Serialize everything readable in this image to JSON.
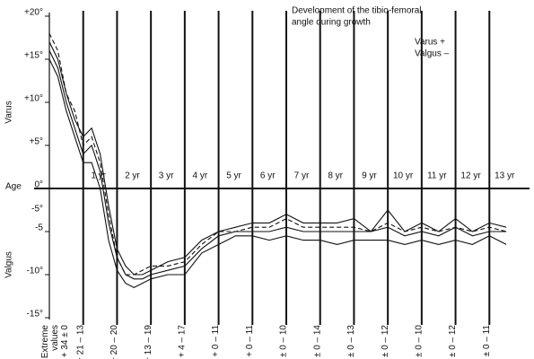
{
  "chart_data": {
    "type": "line",
    "title_lines": [
      "Development of the tibio-femoral",
      "angle during growth"
    ],
    "legend_lines": [
      "Varus +",
      "Valgus –"
    ],
    "y_upper_label": "Varus",
    "y_lower_label": "Valgus",
    "x_label": "Age",
    "extra_tick_label": "-5°",
    "ylim": [
      -15,
      20
    ],
    "yticks": [
      {
        "value": 20,
        "label": "+20°"
      },
      {
        "value": 15,
        "label": "+15°"
      },
      {
        "value": 10,
        "label": "+10°"
      },
      {
        "value": 5,
        "label": "+5°"
      },
      {
        "value": 0,
        "label": "0°"
      },
      {
        "value": -5,
        "label": "-5"
      },
      {
        "value": -10,
        "label": "-10°"
      },
      {
        "value": -15,
        "label": "-15°"
      }
    ],
    "xlim": [
      0,
      14
    ],
    "xticks": [
      {
        "value": 0,
        "label": "Extreme values + 34 ± 0"
      },
      {
        "value": 1,
        "label": "+ 21 – 13"
      },
      {
        "value": 2,
        "label": "+ 20 – 20"
      },
      {
        "value": 3,
        "label": "+ 13 – 19"
      },
      {
        "value": 4,
        "label": "+ 4 – 17"
      },
      {
        "value": 5,
        "label": "+ 0 – 11"
      },
      {
        "value": 6,
        "label": "+ 0 – 11"
      },
      {
        "value": 7,
        "label": "± 0 – 10"
      },
      {
        "value": 8,
        "label": "± 0 – 14"
      },
      {
        "value": 9,
        "label": "± 0 – 13"
      },
      {
        "value": 10,
        "label": "± 0 – 12"
      },
      {
        "value": 11,
        "label": "± 0 – 10"
      },
      {
        "value": 12,
        "label": "± 0 – 12"
      },
      {
        "value": 13,
        "label": "± 0 – 11"
      }
    ],
    "age_labels": [
      "1 yr",
      "2 yr",
      "3 yr",
      "4 yr",
      "5 yr",
      "6 yr",
      "7 yr",
      "8 yr",
      "9 yr",
      "10 yr",
      "11 yr",
      "12 yr",
      "13 yr"
    ],
    "x": [
      0,
      0.25,
      0.5,
      0.75,
      1,
      1.25,
      1.5,
      1.75,
      2,
      2.25,
      2.5,
      2.75,
      3,
      3.5,
      4,
      4.5,
      5,
      5.5,
      6,
      6.5,
      7,
      7.5,
      8,
      8.5,
      9,
      9.5,
      10,
      10.5,
      11,
      11.5,
      12,
      12.5,
      13,
      13.5
    ],
    "series": [
      {
        "color": "#111",
        "dash": false,
        "values": [
          17,
          15,
          11,
          8,
          6,
          7,
          4,
          -2,
          -7,
          -9,
          -10,
          -10,
          -9.5,
          -8.5,
          -8,
          -6,
          -5,
          -4.5,
          -4,
          -4,
          -3,
          -4,
          -4,
          -4,
          -3.5,
          -5,
          -2.5,
          -5,
          -4,
          -5,
          -3.5,
          -5,
          -4,
          -4.5
        ]
      },
      {
        "color": "#111",
        "dash": false,
        "values": [
          16,
          14,
          10,
          7,
          4,
          5,
          2,
          -4,
          -8,
          -10,
          -10.5,
          -10.5,
          -10,
          -9.5,
          -9,
          -7,
          -5.5,
          -5,
          -5,
          -5,
          -4.5,
          -5,
          -5,
          -5,
          -5,
          -5,
          -4.5,
          -5.5,
          -5,
          -5.5,
          -4.5,
          -5.5,
          -5,
          -5
        ]
      },
      {
        "color": "#111",
        "dash": false,
        "values": [
          15,
          13,
          9,
          6,
          3,
          3,
          0,
          -6,
          -9.5,
          -11,
          -11.5,
          -11,
          -10.5,
          -10,
          -10,
          -7.5,
          -6.5,
          -5.5,
          -5.5,
          -6,
          -5.5,
          -6,
          -6,
          -6.5,
          -6,
          -6,
          -6,
          -6.5,
          -6,
          -6.5,
          -6,
          -6.5,
          -5.5,
          -6.5
        ]
      },
      {
        "color": "#111",
        "dash": true,
        "values": [
          18,
          16,
          11,
          9,
          5,
          6,
          3,
          -3,
          -8,
          -10,
          -10,
          -9.5,
          -9,
          -9,
          -8.5,
          -6.5,
          -5,
          -5,
          -4.5,
          -4.5,
          -3.5,
          -4.5,
          -4.5,
          -4.5,
          -4.5,
          -5,
          -4,
          -5,
          -4.5,
          -5,
          -4.5,
          -5,
          -4.5,
          -5
        ]
      }
    ]
  }
}
